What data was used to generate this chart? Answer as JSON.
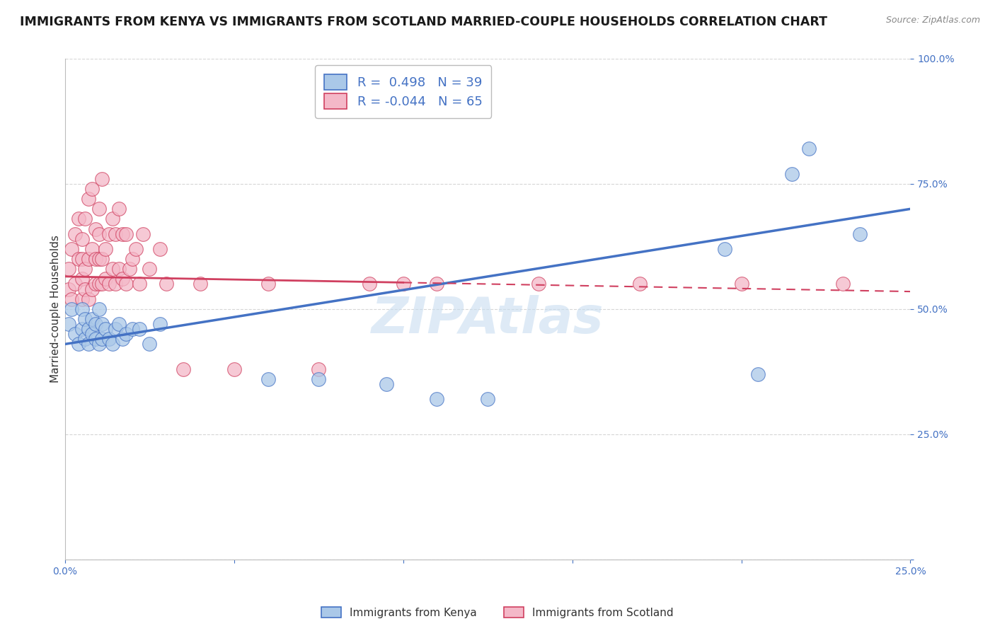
{
  "title": "IMMIGRANTS FROM KENYA VS IMMIGRANTS FROM SCOTLAND MARRIED-COUPLE HOUSEHOLDS CORRELATION CHART",
  "source": "Source: ZipAtlas.com",
  "xlabel_kenya": "Immigrants from Kenya",
  "xlabel_scotland": "Immigrants from Scotland",
  "ylabel": "Married-couple Households",
  "watermark": "ZIPAtlas",
  "xlim": [
    0.0,
    0.25
  ],
  "ylim": [
    0.0,
    1.0
  ],
  "kenya_color": "#aac8e8",
  "kenya_edge_color": "#4472c4",
  "scotland_color": "#f4b8c8",
  "scotland_edge_color": "#d04060",
  "kenya_line_color": "#4472c4",
  "scotland_line_color": "#d04060",
  "kenya_R": 0.498,
  "kenya_N": 39,
  "scotland_R": -0.044,
  "scotland_N": 65,
  "kenya_x": [
    0.001,
    0.002,
    0.003,
    0.004,
    0.005,
    0.005,
    0.006,
    0.006,
    0.007,
    0.007,
    0.008,
    0.008,
    0.009,
    0.009,
    0.01,
    0.01,
    0.011,
    0.011,
    0.012,
    0.013,
    0.014,
    0.015,
    0.016,
    0.017,
    0.018,
    0.02,
    0.022,
    0.025,
    0.028,
    0.06,
    0.075,
    0.095,
    0.11,
    0.125,
    0.195,
    0.205,
    0.215,
    0.22,
    0.235
  ],
  "kenya_y": [
    0.47,
    0.5,
    0.45,
    0.43,
    0.46,
    0.5,
    0.44,
    0.48,
    0.43,
    0.46,
    0.45,
    0.48,
    0.44,
    0.47,
    0.43,
    0.5,
    0.44,
    0.47,
    0.46,
    0.44,
    0.43,
    0.46,
    0.47,
    0.44,
    0.45,
    0.46,
    0.46,
    0.43,
    0.47,
    0.36,
    0.36,
    0.35,
    0.32,
    0.32,
    0.62,
    0.37,
    0.77,
    0.82,
    0.65
  ],
  "scotland_x": [
    0.001,
    0.001,
    0.002,
    0.002,
    0.003,
    0.003,
    0.004,
    0.004,
    0.005,
    0.005,
    0.005,
    0.005,
    0.006,
    0.006,
    0.006,
    0.007,
    0.007,
    0.007,
    0.008,
    0.008,
    0.008,
    0.009,
    0.009,
    0.009,
    0.01,
    0.01,
    0.01,
    0.01,
    0.011,
    0.011,
    0.011,
    0.012,
    0.012,
    0.013,
    0.013,
    0.014,
    0.014,
    0.015,
    0.015,
    0.016,
    0.016,
    0.017,
    0.017,
    0.018,
    0.018,
    0.019,
    0.02,
    0.021,
    0.022,
    0.023,
    0.025,
    0.028,
    0.03,
    0.035,
    0.04,
    0.05,
    0.06,
    0.075,
    0.09,
    0.1,
    0.11,
    0.14,
    0.17,
    0.2,
    0.23
  ],
  "scotland_y": [
    0.54,
    0.58,
    0.52,
    0.62,
    0.55,
    0.65,
    0.6,
    0.68,
    0.52,
    0.56,
    0.6,
    0.64,
    0.54,
    0.58,
    0.68,
    0.52,
    0.6,
    0.72,
    0.54,
    0.62,
    0.74,
    0.55,
    0.6,
    0.66,
    0.55,
    0.6,
    0.65,
    0.7,
    0.55,
    0.6,
    0.76,
    0.56,
    0.62,
    0.55,
    0.65,
    0.58,
    0.68,
    0.55,
    0.65,
    0.58,
    0.7,
    0.56,
    0.65,
    0.55,
    0.65,
    0.58,
    0.6,
    0.62,
    0.55,
    0.65,
    0.58,
    0.62,
    0.55,
    0.38,
    0.55,
    0.38,
    0.55,
    0.38,
    0.55,
    0.55,
    0.55,
    0.55,
    0.55,
    0.55,
    0.55
  ],
  "background_color": "#ffffff",
  "grid_color": "#cccccc",
  "title_fontsize": 12.5,
  "axis_fontsize": 11,
  "tick_fontsize": 10,
  "legend_fontsize": 13,
  "watermark_fontsize": 52,
  "watermark_color": "#c8ddf0",
  "watermark_alpha": 0.6,
  "kenya_intercept": 0.43,
  "kenya_slope": 1.08,
  "scotland_intercept": 0.565,
  "scotland_slope": -0.12
}
